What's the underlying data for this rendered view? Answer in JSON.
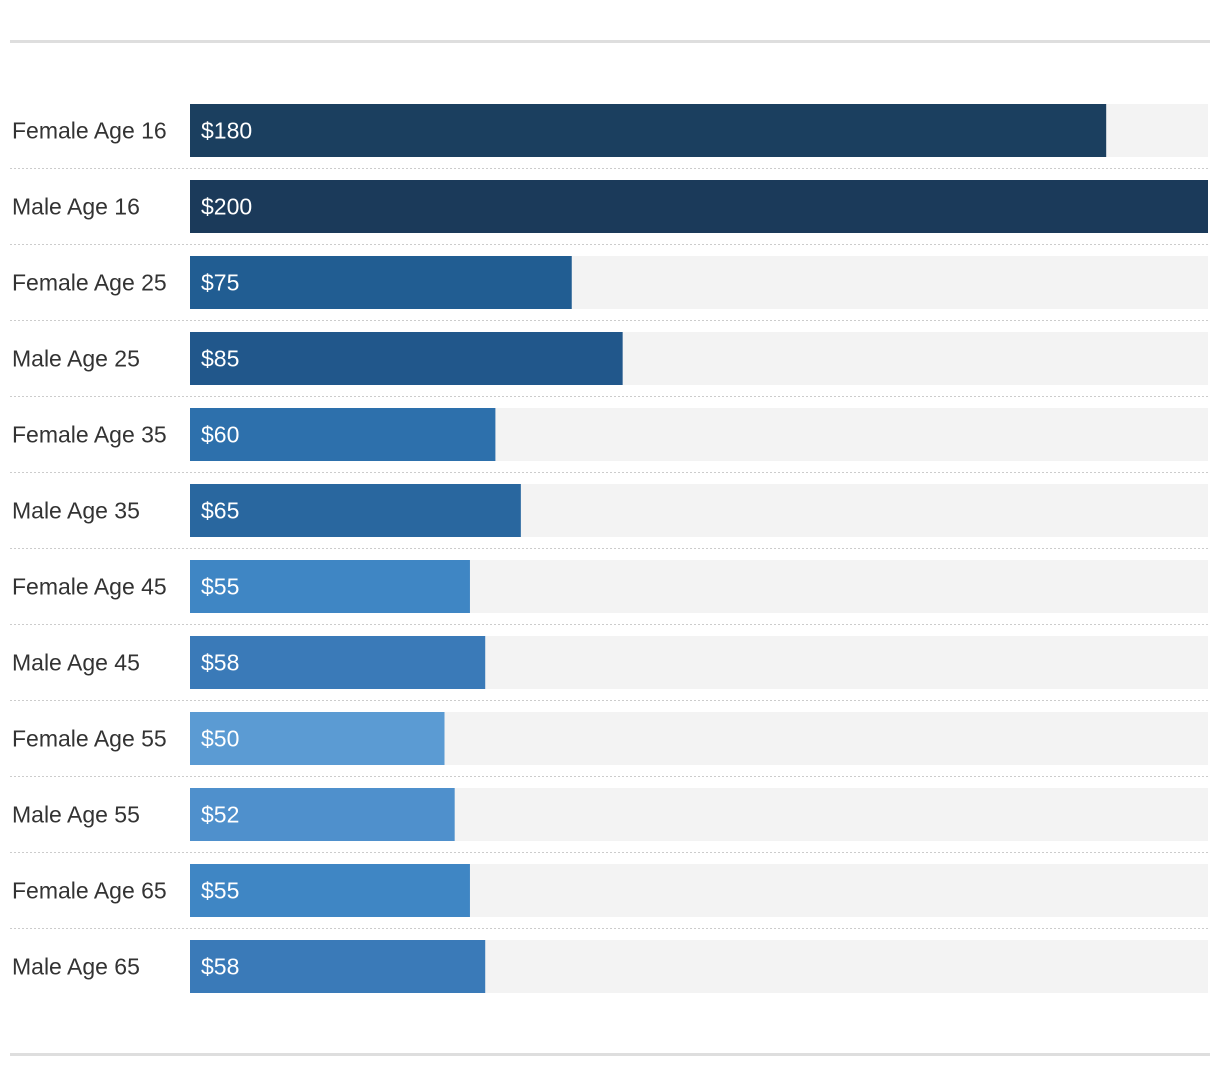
{
  "chart_data": {
    "type": "bar",
    "orientation": "horizontal",
    "title": "",
    "xlabel": "",
    "ylabel": "",
    "xlim": [
      0,
      200
    ],
    "grid": false,
    "legend": "none",
    "categories": [
      "Female Age 16",
      "Male Age 16",
      "Female Age 25",
      "Male Age 25",
      "Female Age 35",
      "Male Age 35",
      "Female Age 45",
      "Male Age 45",
      "Female Age 55",
      "Male Age 55",
      "Female Age 65",
      "Male Age 65"
    ],
    "values": [
      180,
      200,
      75,
      85,
      60,
      65,
      55,
      58,
      50,
      52,
      55,
      58
    ],
    "value_labels": [
      "$180",
      "$200",
      "$75",
      "$85",
      "$60",
      "$65",
      "$55",
      "$58",
      "$50",
      "$52",
      "$55",
      "$58"
    ],
    "colors": [
      "#1b3f5f",
      "#1b3a5a",
      "#215d92",
      "#21578b",
      "#2d70ac",
      "#29679f",
      "#3f86c4",
      "#3a7ab8",
      "#5b9bd3",
      "#4f90cc",
      "#3f86c4",
      "#3a7ab8"
    ],
    "track_color": "#f3f3f3",
    "separator_color": "#cccccc"
  }
}
